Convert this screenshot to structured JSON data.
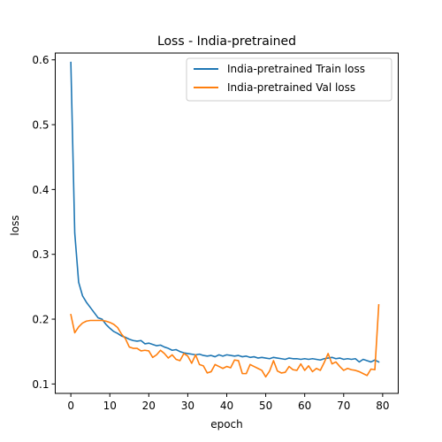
{
  "chart_data": {
    "type": "line",
    "title": "Loss - India-pretrained",
    "xlabel": "epoch",
    "ylabel": "loss",
    "xlim": [
      -4,
      84
    ],
    "ylim": [
      0.0855,
      0.6105
    ],
    "xticks": [
      0,
      10,
      20,
      30,
      40,
      50,
      60,
      70,
      80
    ],
    "yticks": [
      0.1,
      0.2,
      0.3,
      0.4,
      0.5,
      0.6
    ],
    "grid": false,
    "legend_position": "top-right",
    "series": [
      {
        "name": "India-pretrained Train loss",
        "color": "#1f77b4",
        "x": [
          0,
          1,
          2,
          3,
          4,
          5,
          6,
          7,
          8,
          9,
          10,
          11,
          12,
          13,
          14,
          15,
          16,
          17,
          18,
          19,
          20,
          21,
          22,
          23,
          24,
          25,
          26,
          27,
          28,
          29,
          30,
          31,
          32,
          33,
          34,
          35,
          36,
          37,
          38,
          39,
          40,
          41,
          42,
          43,
          44,
          45,
          46,
          47,
          48,
          49,
          50,
          51,
          52,
          53,
          54,
          55,
          56,
          57,
          58,
          59,
          60,
          61,
          62,
          63,
          64,
          65,
          66,
          67,
          68,
          69,
          70,
          71,
          72,
          73,
          74,
          75,
          76,
          77,
          78,
          79
        ],
        "values": [
          0.596,
          0.333,
          0.257,
          0.236,
          0.226,
          0.218,
          0.21,
          0.202,
          0.2,
          0.192,
          0.186,
          0.181,
          0.178,
          0.174,
          0.172,
          0.169,
          0.167,
          0.166,
          0.167,
          0.162,
          0.163,
          0.161,
          0.159,
          0.16,
          0.157,
          0.155,
          0.152,
          0.153,
          0.15,
          0.148,
          0.147,
          0.146,
          0.145,
          0.146,
          0.144,
          0.143,
          0.144,
          0.142,
          0.145,
          0.143,
          0.145,
          0.144,
          0.143,
          0.144,
          0.142,
          0.143,
          0.141,
          0.142,
          0.14,
          0.141,
          0.14,
          0.139,
          0.141,
          0.14,
          0.139,
          0.138,
          0.14,
          0.139,
          0.139,
          0.138,
          0.139,
          0.138,
          0.139,
          0.138,
          0.137,
          0.139,
          0.14,
          0.141,
          0.139,
          0.14,
          0.138,
          0.139,
          0.138,
          0.139,
          0.134,
          0.138,
          0.136,
          0.134,
          0.137,
          0.134
        ]
      },
      {
        "name": "India-pretrained Val loss",
        "color": "#ff7f0e",
        "x": [
          0,
          1,
          2,
          3,
          4,
          5,
          6,
          7,
          8,
          9,
          10,
          11,
          12,
          13,
          14,
          15,
          16,
          17,
          18,
          19,
          20,
          21,
          22,
          23,
          24,
          25,
          26,
          27,
          28,
          29,
          30,
          31,
          32,
          33,
          34,
          35,
          36,
          37,
          38,
          39,
          40,
          41,
          42,
          43,
          44,
          45,
          46,
          47,
          48,
          49,
          50,
          51,
          52,
          53,
          54,
          55,
          56,
          57,
          58,
          59,
          60,
          61,
          62,
          63,
          64,
          65,
          66,
          67,
          68,
          69,
          70,
          71,
          72,
          73,
          74,
          75,
          76,
          77,
          78,
          79
        ],
        "values": [
          0.207,
          0.179,
          0.188,
          0.194,
          0.197,
          0.198,
          0.198,
          0.198,
          0.198,
          0.197,
          0.195,
          0.192,
          0.187,
          0.177,
          0.17,
          0.157,
          0.155,
          0.155,
          0.151,
          0.152,
          0.151,
          0.141,
          0.145,
          0.152,
          0.147,
          0.14,
          0.145,
          0.138,
          0.136,
          0.147,
          0.143,
          0.132,
          0.145,
          0.13,
          0.128,
          0.117,
          0.119,
          0.13,
          0.127,
          0.124,
          0.127,
          0.125,
          0.137,
          0.136,
          0.116,
          0.116,
          0.13,
          0.127,
          0.124,
          0.121,
          0.111,
          0.12,
          0.136,
          0.12,
          0.117,
          0.118,
          0.127,
          0.122,
          0.121,
          0.131,
          0.121,
          0.128,
          0.119,
          0.124,
          0.121,
          0.133,
          0.147,
          0.131,
          0.134,
          0.127,
          0.121,
          0.124,
          0.122,
          0.121,
          0.119,
          0.116,
          0.113,
          0.123,
          0.122,
          0.222
        ]
      }
    ]
  }
}
